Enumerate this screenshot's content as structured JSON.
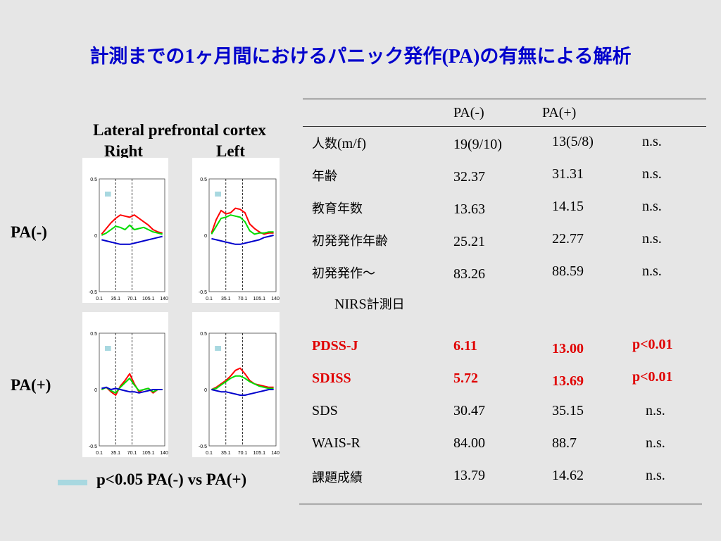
{
  "title": {
    "part1": "計測までの",
    "part2": "1",
    "part3": "ヶ月間におけるパニック発作",
    "part4": "(PA)",
    "part5": "の有無による解析"
  },
  "figure": {
    "region": "Lateral prefrontal cortex",
    "right": "Right",
    "left": "Left",
    "row_labels": [
      "PA(-)",
      "PA(+)"
    ],
    "legend": "p<0.05 PA(-) vs PA(+)",
    "colors": {
      "oxy": "#ff0000",
      "total": "#00dd00",
      "deoxy": "#0000cc",
      "sig": "#a8d8e0"
    }
  },
  "chart_data": [
    {
      "type": "line",
      "panel": "PA(-) Right",
      "x_ticks": [
        "0.1",
        "35.1",
        "70.1",
        "105.1",
        "140."
      ],
      "y_ticks": [
        "0.5",
        "0",
        "-0.5"
      ],
      "ylim": [
        -0.5,
        0.5
      ],
      "xlim": [
        0,
        140
      ],
      "series": [
        {
          "x": [
            5,
            15,
            25,
            35,
            45,
            55,
            65,
            75,
            85,
            95,
            105,
            115,
            125,
            135
          ],
          "y": [
            0.01,
            0.06,
            0.11,
            0.15,
            0.18,
            0.17,
            0.16,
            0.18,
            0.15,
            0.12,
            0.09,
            0.05,
            0.03,
            0.02
          ]
        },
        {
          "x": [
            5,
            15,
            25,
            35,
            45,
            55,
            65,
            75,
            85,
            95,
            105,
            115,
            125,
            135
          ],
          "y": [
            0.0,
            0.02,
            0.05,
            0.08,
            0.07,
            0.05,
            0.09,
            0.05,
            0.06,
            0.07,
            0.05,
            0.03,
            0.02,
            0.01
          ]
        },
        {
          "x": [
            5,
            15,
            25,
            35,
            45,
            55,
            65,
            75,
            85,
            95,
            105,
            115,
            125,
            135
          ],
          "y": [
            -0.04,
            -0.05,
            -0.06,
            -0.07,
            -0.08,
            -0.08,
            -0.08,
            -0.07,
            -0.06,
            -0.05,
            -0.04,
            -0.03,
            -0.02,
            -0.01
          ]
        }
      ],
      "significant": [
        [
          12,
          25
        ]
      ]
    },
    {
      "type": "line",
      "panel": "PA(-) Left",
      "x_ticks": [
        "0.1",
        "35.1",
        "70.1",
        "105.1",
        "140."
      ],
      "y_ticks": [
        "0.5",
        "0",
        "-0.5"
      ],
      "ylim": [
        -0.5,
        0.5
      ],
      "xlim": [
        0,
        140
      ],
      "series": [
        {
          "x": [
            5,
            15,
            25,
            35,
            45,
            55,
            65,
            75,
            85,
            95,
            105,
            115,
            125,
            135
          ],
          "y": [
            0.02,
            0.14,
            0.22,
            0.19,
            0.2,
            0.24,
            0.23,
            0.2,
            0.1,
            0.06,
            0.03,
            0.01,
            0.02,
            0.02
          ]
        },
        {
          "x": [
            5,
            15,
            25,
            35,
            45,
            55,
            65,
            75,
            85,
            95,
            105,
            115,
            125,
            135
          ],
          "y": [
            0.01,
            0.08,
            0.15,
            0.16,
            0.18,
            0.17,
            0.16,
            0.12,
            0.04,
            0.01,
            0.02,
            0.02,
            0.03,
            0.03
          ]
        },
        {
          "x": [
            5,
            15,
            25,
            35,
            45,
            55,
            65,
            75,
            85,
            95,
            105,
            115,
            125,
            135
          ],
          "y": [
            -0.03,
            -0.04,
            -0.05,
            -0.06,
            -0.07,
            -0.08,
            -0.08,
            -0.07,
            -0.06,
            -0.05,
            -0.04,
            -0.02,
            -0.01,
            0.0
          ]
        }
      ],
      "significant": [
        [
          12,
          25
        ]
      ]
    },
    {
      "type": "line",
      "panel": "PA(+) Right",
      "x_ticks": [
        "0.1",
        "35.1",
        "70.1",
        "105.1",
        "140."
      ],
      "y_ticks": [
        "0.5",
        "0",
        "-0.5"
      ],
      "ylim": [
        -0.5,
        0.5
      ],
      "xlim": [
        0,
        140
      ],
      "series": [
        {
          "x": [
            5,
            15,
            25,
            35,
            45,
            55,
            65,
            75,
            85,
            95,
            105,
            115,
            125,
            135
          ],
          "y": [
            0.0,
            0.02,
            -0.02,
            -0.05,
            0.03,
            0.08,
            0.14,
            0.05,
            -0.02,
            0.0,
            0.01,
            -0.03,
            0.0,
            0.0
          ]
        },
        {
          "x": [
            5,
            15,
            25,
            35,
            45,
            55,
            65,
            75,
            85,
            95,
            105,
            115,
            125,
            135
          ],
          "y": [
            0.0,
            0.02,
            -0.01,
            -0.03,
            0.02,
            0.06,
            0.1,
            0.04,
            -0.01,
            0.0,
            0.01,
            -0.02,
            0.0,
            0.0
          ]
        },
        {
          "x": [
            5,
            15,
            25,
            35,
            45,
            55,
            65,
            75,
            85,
            95,
            105,
            115,
            125,
            135
          ],
          "y": [
            0.01,
            0.02,
            0.0,
            0.01,
            0.0,
            -0.01,
            -0.02,
            -0.02,
            -0.03,
            -0.02,
            -0.01,
            0.0,
            0.0,
            0.0
          ]
        }
      ],
      "significant": [
        [
          12,
          25
        ]
      ]
    },
    {
      "type": "line",
      "panel": "PA(+) Left",
      "x_ticks": [
        "0.1",
        "35.1",
        "70.1",
        "105.1",
        "140."
      ],
      "y_ticks": [
        "0.5",
        "0",
        "-0.5"
      ],
      "ylim": [
        -0.5,
        0.5
      ],
      "xlim": [
        0,
        140
      ],
      "series": [
        {
          "x": [
            5,
            15,
            25,
            35,
            45,
            55,
            65,
            75,
            85,
            95,
            105,
            115,
            125,
            135
          ],
          "y": [
            0.0,
            0.02,
            0.05,
            0.08,
            0.12,
            0.17,
            0.19,
            0.14,
            0.08,
            0.05,
            0.04,
            0.03,
            0.02,
            0.02
          ]
        },
        {
          "x": [
            5,
            15,
            25,
            35,
            45,
            55,
            65,
            75,
            85,
            95,
            105,
            115,
            125,
            135
          ],
          "y": [
            0.0,
            0.01,
            0.04,
            0.07,
            0.1,
            0.12,
            0.12,
            0.1,
            0.07,
            0.05,
            0.03,
            0.02,
            0.01,
            0.01
          ]
        },
        {
          "x": [
            5,
            15,
            25,
            35,
            45,
            55,
            65,
            75,
            85,
            95,
            105,
            115,
            125,
            135
          ],
          "y": [
            0.0,
            -0.01,
            -0.02,
            -0.02,
            -0.03,
            -0.04,
            -0.05,
            -0.05,
            -0.04,
            -0.03,
            -0.02,
            -0.01,
            0.0,
            0.0
          ]
        }
      ],
      "significant": [
        [
          12,
          25
        ]
      ]
    }
  ],
  "table": {
    "headers": [
      "PA(-)",
      "PA(+)"
    ],
    "rows": [
      {
        "label": "人数",
        "label_suffix": "(m/f)",
        "a": "19(9/10)",
        "b": "13(5/8)",
        "p": "n.s.",
        "red": false
      },
      {
        "label": "年齢",
        "a": "32.37",
        "b": "31.31",
        "p": "n.s.",
        "red": false
      },
      {
        "label": "教育年数",
        "a": "13.63",
        "b": "14.15",
        "p": "n.s.",
        "red": false
      },
      {
        "label": "初発発作年齢",
        "a": "25.21",
        "b": "22.77",
        "p": "n.s.",
        "red": false
      },
      {
        "label": "初発発作〜",
        "label_line2_latin": "NIRS",
        "label_line2_jp": "計測日",
        "a": "83.26",
        "b": "88.59",
        "p": "n.s.",
        "red": false
      },
      {
        "label": "PDSS-J",
        "a": "6.11",
        "b": "13.00",
        "p": "p<0.01",
        "red": true
      },
      {
        "label": "SDISS",
        "a": "5.72",
        "b": "13.69",
        "p": "p<0.01",
        "red": true
      },
      {
        "label": "SDS",
        "a": "30.47",
        "b": "35.15",
        "p": "n.s.",
        "red": false
      },
      {
        "label": "WAIS-R",
        "a": "84.00",
        "b": "88.7",
        "p": "n.s.",
        "red": false
      },
      {
        "label": "課題成績",
        "a": "13.79",
        "b": "14.62",
        "p": "n.s.",
        "red": false
      }
    ]
  }
}
